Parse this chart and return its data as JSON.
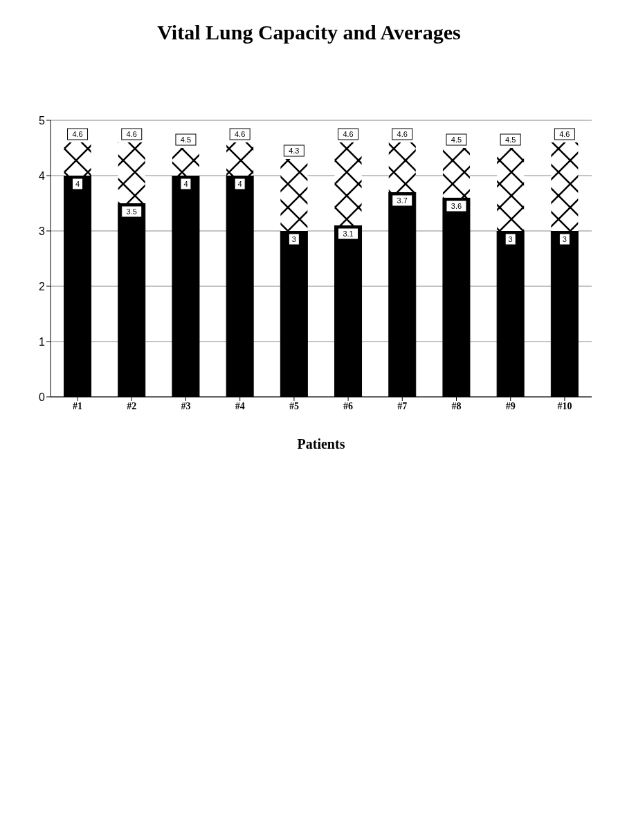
{
  "chart_data": {
    "type": "bar",
    "title": "Vital Lung Capacity and Averages",
    "xlabel": "Patients",
    "categories": [
      "#1",
      "#2",
      "#3",
      "#4",
      "#5",
      "#6",
      "#7",
      "#8",
      "#9",
      "#10"
    ],
    "stacked": true,
    "series": [
      {
        "color": "#000000",
        "values": [
          4,
          3.5,
          4,
          4,
          3,
          3.1,
          3.7,
          3.6,
          3,
          3
        ],
        "value_labels": [
          "4",
          "3.5",
          "4",
          "4",
          "3",
          "3.1",
          "3.7",
          "3.6",
          "3",
          "3"
        ]
      },
      {
        "color": "#ffffff",
        "values": [
          0.6,
          1.1,
          0.5,
          0.6,
          1.3,
          1.5,
          0.9,
          0.9,
          1.5,
          1.6
        ]
      }
    ],
    "totals": [
      "4.6",
      "4.6",
      "4.5",
      "4.6",
      "4.3",
      "4.6",
      "4.6",
      "4.5",
      "4.5",
      "4.6"
    ],
    "ylim": [
      0,
      5
    ],
    "yticks": [
      0,
      1,
      2,
      3,
      4,
      5
    ],
    "grid": "y",
    "legend": false
  }
}
